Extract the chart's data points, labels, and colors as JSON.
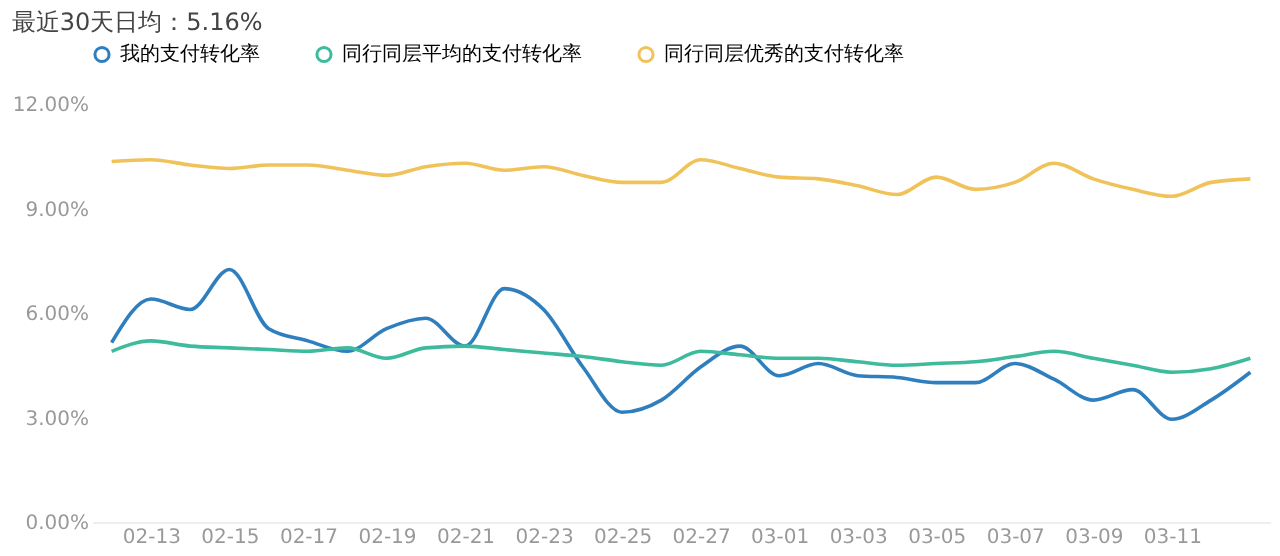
{
  "chart_data": {
    "type": "line",
    "title": "最近30天日均：5.16%",
    "categories": [
      null,
      "02-13",
      null,
      "02-15",
      null,
      "02-17",
      null,
      "02-19",
      null,
      "02-21",
      null,
      "02-23",
      null,
      "02-25",
      null,
      "02-27",
      null,
      "03-01",
      null,
      "03-03",
      null,
      "03-05",
      null,
      "03-07",
      null,
      "03-09",
      null,
      "03-11",
      null,
      null
    ],
    "series": [
      {
        "name": "我的支付转化率",
        "color": "#2f7fbf",
        "values": [
          5.15,
          6.4,
          6.1,
          7.25,
          5.55,
          5.2,
          4.9,
          5.55,
          5.85,
          5.05,
          6.7,
          6.1,
          4.45,
          3.15,
          3.5,
          4.45,
          5.05,
          4.2,
          4.55,
          4.2,
          4.15,
          4.0,
          4.0,
          4.55,
          4.1,
          3.5,
          3.8,
          2.95,
          3.5,
          4.3
        ]
      },
      {
        "name": "同行同层平均的支付转化率",
        "color": "#3dbb9c",
        "values": [
          4.9,
          5.2,
          5.05,
          5.0,
          4.95,
          4.9,
          5.0,
          4.7,
          5.0,
          5.05,
          4.95,
          4.85,
          4.75,
          4.6,
          4.5,
          4.9,
          4.8,
          4.7,
          4.7,
          4.6,
          4.5,
          4.55,
          4.6,
          4.75,
          4.9,
          4.7,
          4.5,
          4.3,
          4.4,
          4.7
        ]
      },
      {
        "name": "同行同层优秀的支付转化率",
        "color": "#f0c35a",
        "values": [
          10.35,
          10.4,
          10.25,
          10.15,
          10.25,
          10.25,
          10.1,
          9.95,
          10.2,
          10.3,
          10.1,
          10.2,
          9.95,
          9.75,
          9.75,
          10.4,
          10.15,
          9.9,
          9.85,
          9.65,
          9.4,
          9.9,
          9.55,
          9.75,
          10.3,
          9.85,
          9.55,
          9.35,
          9.75,
          9.85
        ]
      }
    ],
    "ylim": [
      0,
      12
    ],
    "yticks": [
      {
        "value": 0,
        "label": "0.00%"
      },
      {
        "value": 3,
        "label": "3.00%"
      },
      {
        "value": 6,
        "label": "6.00%"
      },
      {
        "value": 9,
        "label": "9.00%"
      },
      {
        "value": 12,
        "label": "12.00%"
      }
    ],
    "grid": false,
    "legend": "top left",
    "marker": "none",
    "line_style": "solid"
  }
}
